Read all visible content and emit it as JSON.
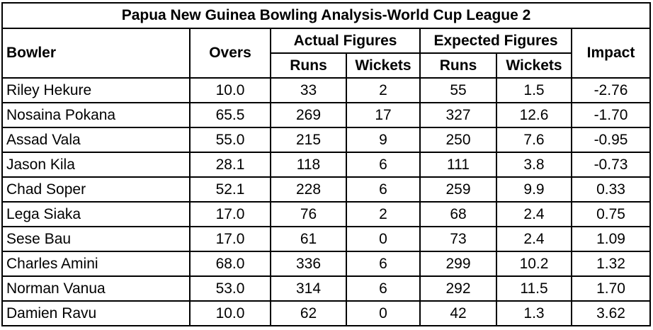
{
  "title": "Papua New Guinea Bowling Analysis-World Cup League 2",
  "headers": {
    "bowler": "Bowler",
    "overs": "Overs",
    "actual": "Actual Figures",
    "expected": "Expected Figures",
    "impact": "Impact",
    "runs": "Runs",
    "wickets": "Wickets"
  },
  "rows": [
    {
      "bowler": "Riley Hekure",
      "overs": "10.0",
      "actual_runs": "33",
      "actual_wickets": "2",
      "expected_runs": "55",
      "expected_wickets": "1.5",
      "impact": "-2.76"
    },
    {
      "bowler": "Nosaina Pokana",
      "overs": "65.5",
      "actual_runs": "269",
      "actual_wickets": "17",
      "expected_runs": "327",
      "expected_wickets": "12.6",
      "impact": "-1.70"
    },
    {
      "bowler": "Assad Vala",
      "overs": "55.0",
      "actual_runs": "215",
      "actual_wickets": "9",
      "expected_runs": "250",
      "expected_wickets": "7.6",
      "impact": "-0.95"
    },
    {
      "bowler": "Jason Kila",
      "overs": "28.1",
      "actual_runs": "118",
      "actual_wickets": "6",
      "expected_runs": "111",
      "expected_wickets": "3.8",
      "impact": "-0.73"
    },
    {
      "bowler": "Chad Soper",
      "overs": "52.1",
      "actual_runs": "228",
      "actual_wickets": "6",
      "expected_runs": "259",
      "expected_wickets": "9.9",
      "impact": "0.33"
    },
    {
      "bowler": "Lega Siaka",
      "overs": "17.0",
      "actual_runs": "76",
      "actual_wickets": "2",
      "expected_runs": "68",
      "expected_wickets": "2.4",
      "impact": "0.75"
    },
    {
      "bowler": "Sese Bau",
      "overs": "17.0",
      "actual_runs": "61",
      "actual_wickets": "0",
      "expected_runs": "73",
      "expected_wickets": "2.4",
      "impact": "1.09"
    },
    {
      "bowler": "Charles Amini",
      "overs": "68.0",
      "actual_runs": "336",
      "actual_wickets": "6",
      "expected_runs": "299",
      "expected_wickets": "10.2",
      "impact": "1.32"
    },
    {
      "bowler": "Norman Vanua",
      "overs": "53.0",
      "actual_runs": "314",
      "actual_wickets": "6",
      "expected_runs": "292",
      "expected_wickets": "11.5",
      "impact": "1.70"
    },
    {
      "bowler": "Damien Ravu",
      "overs": "10.0",
      "actual_runs": "62",
      "actual_wickets": "0",
      "expected_runs": "42",
      "expected_wickets": "1.3",
      "impact": "3.62"
    }
  ]
}
